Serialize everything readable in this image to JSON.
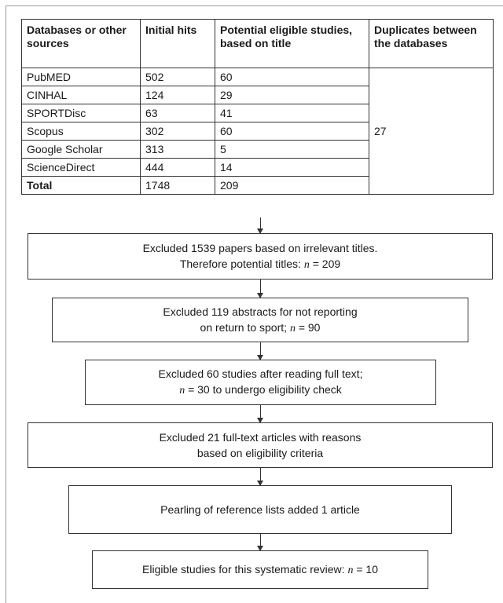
{
  "table": {
    "headers": [
      "Databases or other sources",
      "Initial hits",
      "Potential eligible studies, based on title",
      "Duplicates between the databases"
    ],
    "rows": [
      {
        "source": "PubMED",
        "hits": "502",
        "eligible": "60"
      },
      {
        "source": "CINHAL",
        "hits": "124",
        "eligible": "29"
      },
      {
        "source": "SPORTDisc",
        "hits": "63",
        "eligible": "41"
      },
      {
        "source": "Scopus",
        "hits": "302",
        "eligible": "60"
      },
      {
        "source": "Google Scholar",
        "hits": "313",
        "eligible": "5"
      },
      {
        "source": "ScienceDirect",
        "hits": "444",
        "eligible": "14"
      }
    ],
    "total": {
      "source": "Total",
      "hits": "1748",
      "eligible": "209"
    },
    "duplicates": "27"
  },
  "steps": [
    {
      "line1": "Excluded 1539 papers based on irrelevant titles.",
      "line2_pre": "Therefore potential titles: ",
      "line2_var": "n",
      "line2_post": " = 209"
    },
    {
      "line1": "Excluded 119 abstracts for not reporting",
      "line2_pre": "on return to sport; ",
      "line2_var": "n",
      "line2_post": " = 90"
    },
    {
      "line1": "Excluded 60 studies after reading full text;",
      "line2_pre": "",
      "line2_var": "n",
      "line2_post": " = 30 to undergo eligibility check"
    },
    {
      "line1": "Excluded 21 full-text articles with reasons",
      "line2_pre": "based on eligibility criteria",
      "line2_var": "",
      "line2_post": ""
    },
    {
      "line1": "Pearling of reference lists added 1 article",
      "line2_pre": "",
      "line2_var": "",
      "line2_post": ""
    },
    {
      "line1": "Eligible studies for this systematic review: ",
      "line1_var": "n",
      "line1_post": " = 10",
      "line2_pre": "",
      "line2_var": "",
      "line2_post": ""
    }
  ]
}
